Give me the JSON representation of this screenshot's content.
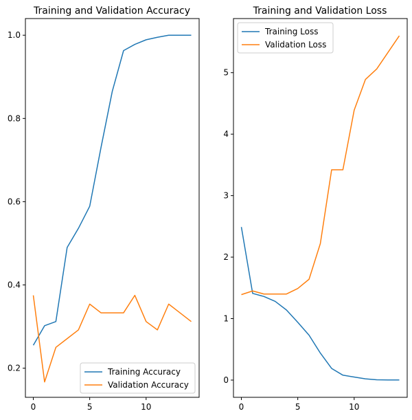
{
  "chart_data": [
    {
      "type": "line",
      "title": "Training and Validation Accuracy",
      "xlabel": "",
      "ylabel": "",
      "xlim": [
        -0.7,
        14.7
      ],
      "ylim": [
        0.13,
        1.04
      ],
      "xticks": [
        0,
        5,
        10
      ],
      "xtick_labels": [
        "0",
        "5",
        "10"
      ],
      "yticks": [
        0.2,
        0.4,
        0.6,
        0.8,
        1.0
      ],
      "ytick_labels": [
        "0.2",
        "0.4",
        "0.6",
        "0.8",
        "1.0"
      ],
      "grid": false,
      "legend": "lower-right",
      "x": [
        0,
        1,
        2,
        3,
        4,
        5,
        6,
        7,
        8,
        9,
        10,
        11,
        12,
        13,
        14
      ],
      "series": [
        {
          "name": "Training Accuracy",
          "color": "#1f77b4",
          "values": [
            0.255,
            0.302,
            0.312,
            0.49,
            0.536,
            0.589,
            0.73,
            0.865,
            0.963,
            0.978,
            0.989,
            0.995,
            1.0,
            1.0,
            1.0
          ]
        },
        {
          "name": "Validation Accuracy",
          "color": "#ff7f0e",
          "values": [
            0.375,
            0.167,
            0.25,
            0.271,
            0.292,
            0.354,
            0.333,
            0.333,
            0.333,
            0.375,
            0.312,
            0.292,
            0.354,
            0.333,
            0.312
          ]
        }
      ]
    },
    {
      "type": "line",
      "title": "Training and Validation Loss",
      "xlabel": "",
      "ylabel": "",
      "xlim": [
        -0.7,
        14.7
      ],
      "ylim": [
        -0.28,
        5.88
      ],
      "xticks": [
        0,
        5,
        10
      ],
      "xtick_labels": [
        "0",
        "5",
        "10"
      ],
      "yticks": [
        0,
        1,
        2,
        3,
        4,
        5
      ],
      "ytick_labels": [
        "0",
        "1",
        "2",
        "3",
        "4",
        "5"
      ],
      "grid": false,
      "legend": "upper-left",
      "x": [
        0,
        1,
        2,
        3,
        4,
        5,
        6,
        7,
        8,
        9,
        10,
        11,
        12,
        13,
        14
      ],
      "series": [
        {
          "name": "Training Loss",
          "color": "#1f77b4",
          "values": [
            2.49,
            1.41,
            1.36,
            1.28,
            1.14,
            0.94,
            0.73,
            0.44,
            0.19,
            0.08,
            0.05,
            0.02,
            0.005,
            0.003,
            0.002
          ]
        },
        {
          "name": "Validation Loss",
          "color": "#ff7f0e",
          "values": [
            1.39,
            1.45,
            1.4,
            1.4,
            1.4,
            1.49,
            1.64,
            2.22,
            3.42,
            3.42,
            4.39,
            4.89,
            5.06,
            5.33,
            5.6
          ]
        }
      ]
    }
  ]
}
